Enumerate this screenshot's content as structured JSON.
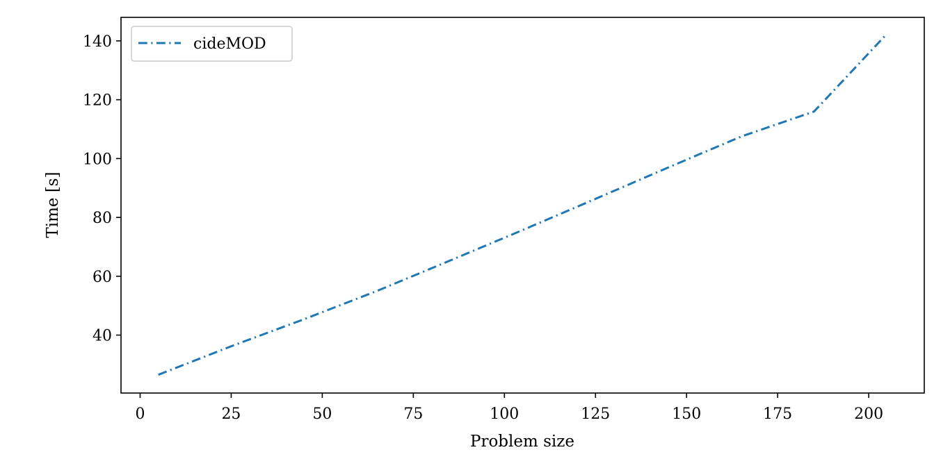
{
  "chart_data": {
    "type": "line",
    "title": "",
    "xlabel": "Problem size",
    "ylabel": "Time [s]",
    "xlim": [
      -5.25,
      215.25
    ],
    "ylim": [
      20.3,
      148.0
    ],
    "xticks": [
      0,
      25,
      50,
      75,
      100,
      125,
      150,
      175,
      200
    ],
    "yticks": [
      40,
      60,
      80,
      100,
      120,
      140
    ],
    "grid": false,
    "legend_position": "top-left",
    "series": [
      {
        "name": "cideMOD",
        "color": "#1f77b4",
        "line_style": "dash-dot",
        "x": [
          5,
          25,
          45,
          65,
          85,
          105,
          125,
          145,
          165,
          185,
          205
        ],
        "y": [
          26.5,
          36.2,
          45.4,
          55.0,
          65.3,
          75.7,
          86.3,
          97.0,
          107.5,
          116.0,
          142.4
        ]
      }
    ]
  }
}
